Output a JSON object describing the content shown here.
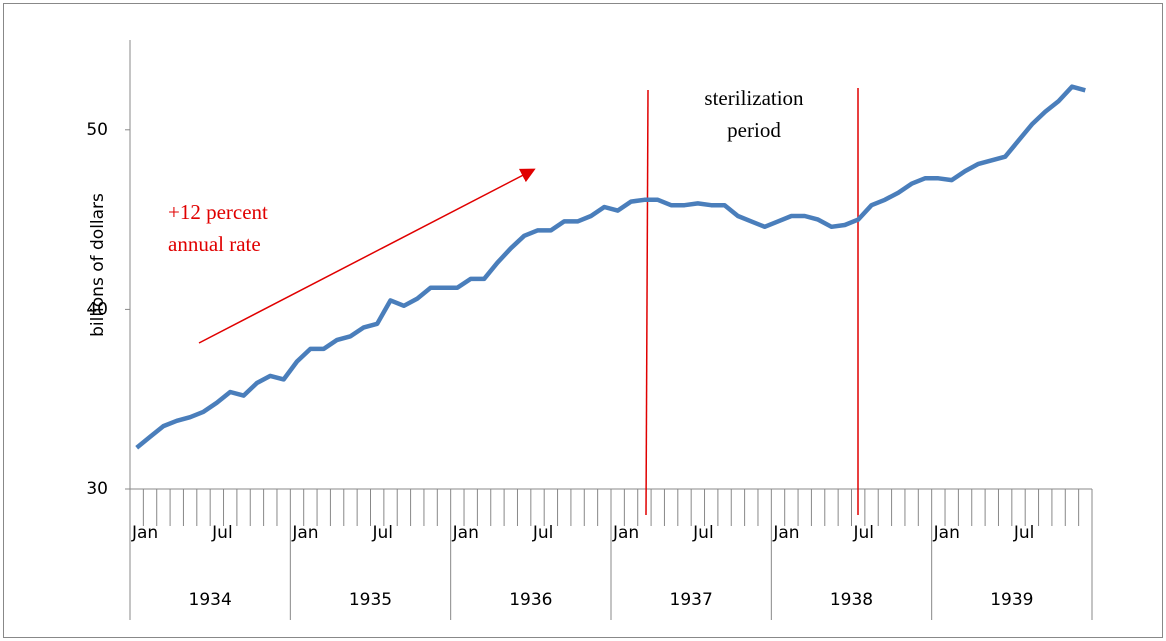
{
  "chart_data": {
    "type": "line",
    "y_label": "billions of dollars",
    "categories": [
      "Jan",
      null,
      null,
      null,
      null,
      null,
      "Jul",
      null,
      null,
      null,
      null,
      null,
      "Jan",
      null,
      null,
      null,
      null,
      null,
      "Jul",
      null,
      null,
      null,
      null,
      null,
      "Jan",
      null,
      null,
      null,
      null,
      null,
      "Jul",
      null,
      null,
      null,
      null,
      null,
      "Jan",
      null,
      null,
      null,
      null,
      null,
      "Jul",
      null,
      null,
      null,
      null,
      null,
      "Jan",
      null,
      null,
      null,
      null,
      null,
      "Jul",
      null,
      null,
      null,
      null,
      null,
      "Jan",
      null,
      null,
      null,
      null,
      null,
      "Jul",
      null,
      null,
      null,
      null,
      null
    ],
    "groups": [
      "1934",
      "1935",
      "1936",
      "1937",
      "1938",
      "1939"
    ],
    "values": [
      32.3,
      32.9,
      33.5,
      33.8,
      34.0,
      34.3,
      34.8,
      35.4,
      35.2,
      35.9,
      36.3,
      36.1,
      37.1,
      37.8,
      37.8,
      38.3,
      38.5,
      39.0,
      39.2,
      40.5,
      40.2,
      40.6,
      41.2,
      41.2,
      41.2,
      41.7,
      41.7,
      42.6,
      43.4,
      44.1,
      44.4,
      44.4,
      44.9,
      44.9,
      45.2,
      45.7,
      45.5,
      46.0,
      46.1,
      46.1,
      45.8,
      45.8,
      45.9,
      45.8,
      45.8,
      45.2,
      44.9,
      44.6,
      44.9,
      45.2,
      45.2,
      45.0,
      44.6,
      44.7,
      45.0,
      45.8,
      46.1,
      46.5,
      47.0,
      47.3,
      47.3,
      47.2,
      47.7,
      48.1,
      48.3,
      48.5,
      49.4,
      50.3,
      51.0,
      51.6,
      52.4,
      52.2
    ],
    "color": "#4a7ebb",
    "ylim": [
      30,
      55
    ],
    "yticks": [
      30,
      40,
      50
    ],
    "annotations": [
      {
        "lines": [
          "+12 percent",
          "annual rate"
        ],
        "color": "#e00000"
      },
      {
        "lines": [
          "sterilization",
          "period"
        ],
        "color": "#000000"
      }
    ]
  }
}
